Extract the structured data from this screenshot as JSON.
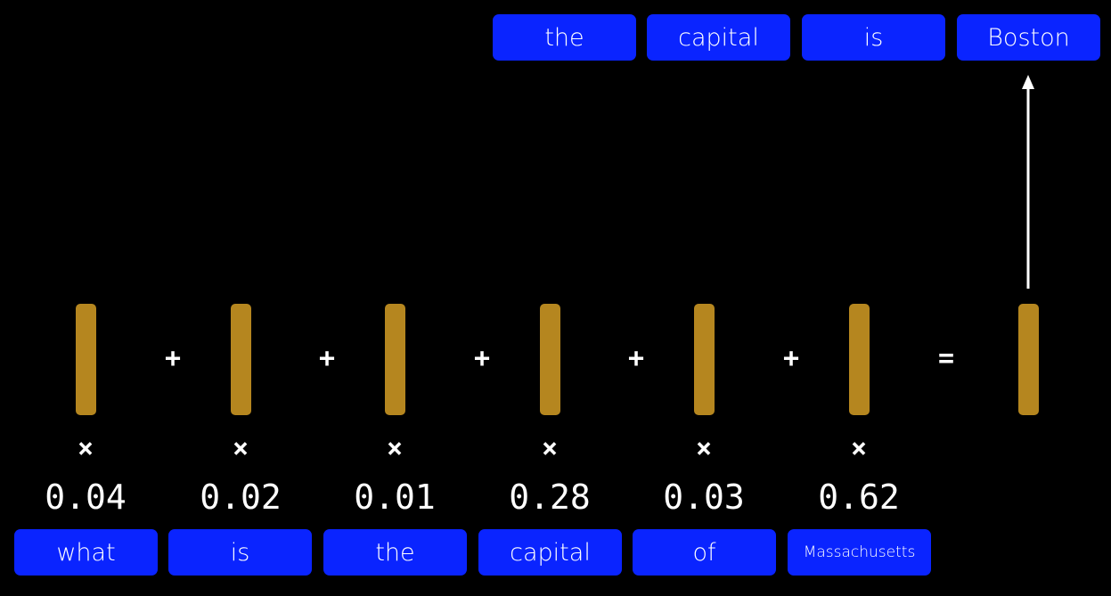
{
  "output_tokens": [
    "the",
    "capital",
    "is",
    "Boston"
  ],
  "input_tokens": [
    "what",
    "is",
    "the",
    "capital",
    "of",
    "Massachusetts"
  ],
  "weights": [
    "0.04",
    "0.02",
    "0.01",
    "0.28",
    "0.03",
    "0.62"
  ],
  "operators": {
    "plus": "+",
    "equals": "=",
    "times": "×"
  },
  "colors": {
    "background": "#000000",
    "token_fill": "#0a24ff",
    "vector_fill": "#b5861f",
    "text": "#ffffff"
  }
}
